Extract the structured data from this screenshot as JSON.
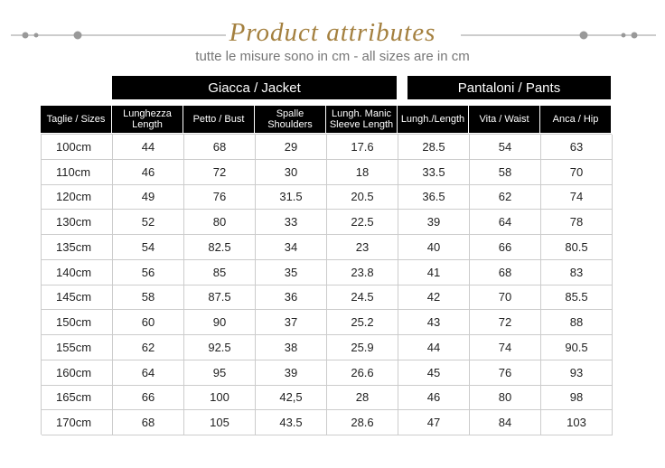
{
  "header": {
    "title": "Product attributes",
    "subtitle": "tutte le misure sono in cm - all sizes are in cm"
  },
  "table": {
    "groups": [
      "Giacca / Jacket",
      "Pantaloni / Pants"
    ],
    "columns": [
      [
        "Taglie / Sizes"
      ],
      [
        "Lunghezza",
        "Length"
      ],
      [
        "Petto / Bust"
      ],
      [
        "Spalle",
        "Shoulders"
      ],
      [
        "Lungh. Manic",
        "Sleeve Length"
      ],
      [
        "Lungh./Length"
      ],
      [
        "Vita / Waist"
      ],
      [
        "Anca / Hip"
      ]
    ],
    "rows": [
      [
        "100cm",
        "44",
        "68",
        "29",
        "17.6",
        "28.5",
        "54",
        "63"
      ],
      [
        "110cm",
        "46",
        "72",
        "30",
        "18",
        "33.5",
        "58",
        "70"
      ],
      [
        "120cm",
        "49",
        "76",
        "31.5",
        "20.5",
        "36.5",
        "62",
        "74"
      ],
      [
        "130cm",
        "52",
        "80",
        "33",
        "22.5",
        "39",
        "64",
        "78"
      ],
      [
        "135cm",
        "54",
        "82.5",
        "34",
        "23",
        "40",
        "66",
        "80.5"
      ],
      [
        "140cm",
        "56",
        "85",
        "35",
        "23.8",
        "41",
        "68",
        "83"
      ],
      [
        "145cm",
        "58",
        "87.5",
        "36",
        "24.5",
        "42",
        "70",
        "85.5"
      ],
      [
        "150cm",
        "60",
        "90",
        "37",
        "25.2",
        "43",
        "72",
        "88"
      ],
      [
        "155cm",
        "62",
        "92.5",
        "38",
        "25.9",
        "44",
        "74",
        "90.5"
      ],
      [
        "160cm",
        "64",
        "95",
        "39",
        "26.6",
        "45",
        "76",
        "93"
      ],
      [
        "165cm",
        "66",
        "100",
        "42,5",
        "28",
        "46",
        "80",
        "98"
      ],
      [
        "170cm",
        "68",
        "105",
        "43.5",
        "28.6",
        "47",
        "84",
        "103"
      ]
    ]
  }
}
